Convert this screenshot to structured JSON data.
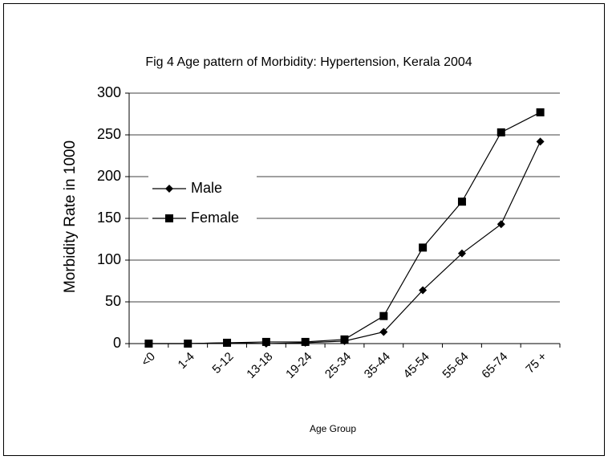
{
  "chart_data": {
    "type": "line",
    "title": "Fig 4 Age pattern of Morbidity: Hypertension, Kerala 2004",
    "x_label": "Age Group",
    "y_label": "Morbidity Rate in 1000",
    "categories": [
      "<0",
      "1-4",
      "5-12",
      "13-18",
      "19-24",
      "25-34",
      "35-44",
      "45-54",
      "55-64",
      "65-74",
      "75 +"
    ],
    "series": [
      {
        "name": "Male",
        "color": "#000000",
        "marker": "diamond",
        "values": [
          0,
          0,
          1,
          0,
          1,
          3,
          14,
          64,
          108,
          143,
          242
        ]
      },
      {
        "name": "Female",
        "color": "#000000",
        "marker": "square",
        "values": [
          0,
          0,
          1,
          2,
          2,
          5,
          33,
          115,
          170,
          253,
          277
        ]
      }
    ],
    "ylim": [
      0,
      300
    ],
    "yticks": [
      0,
      50,
      100,
      150,
      200,
      250,
      300
    ],
    "grid": true,
    "legend": "left"
  }
}
